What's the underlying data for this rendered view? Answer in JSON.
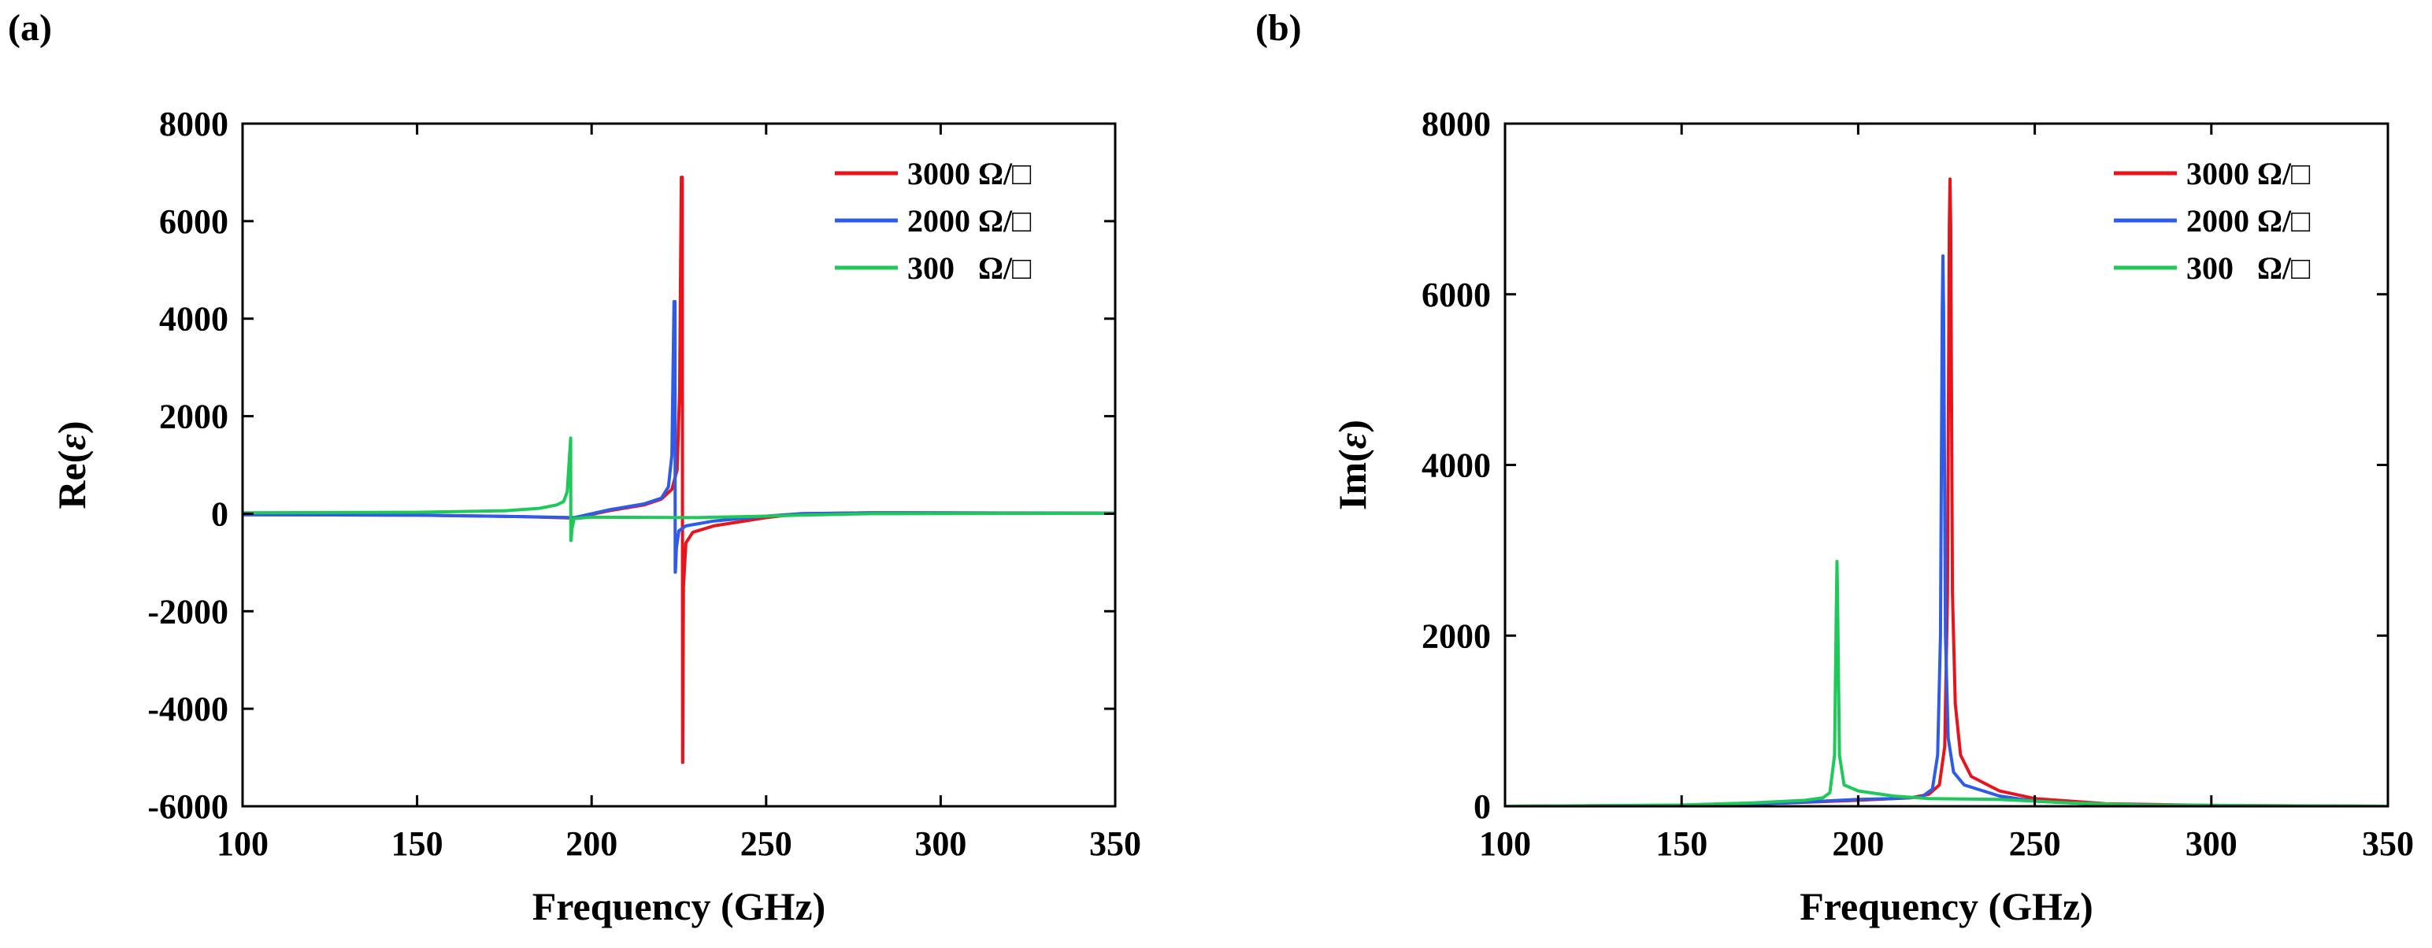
{
  "panels": [
    {
      "label": "(a)"
    },
    {
      "label": "(b)"
    }
  ],
  "chart_data": [
    {
      "type": "line",
      "panel": "(a)",
      "title": "",
      "xlabel": "Frequency (GHz)",
      "ylabel_prefix": "Re(",
      "ylabel_symbol": "ε",
      "ylabel_suffix": ")",
      "xlim": [
        100,
        350
      ],
      "ylim": [
        -6000,
        8000
      ],
      "xticks": [
        "100",
        "150",
        "200",
        "250",
        "300",
        "350"
      ],
      "yticks": [
        "-6000",
        "-4000",
        "-2000",
        "0",
        "2000",
        "4000",
        "6000",
        "8000"
      ],
      "xtick_values": [
        100,
        150,
        200,
        250,
        300,
        350
      ],
      "ytick_values": [
        -6000,
        -4000,
        -2000,
        0,
        2000,
        4000,
        6000,
        8000
      ],
      "legend_position": "top-right",
      "grid": false,
      "series": [
        {
          "name": "3000 Ω/□",
          "color": "#e8141c",
          "x": [
            100,
            150,
            180,
            195,
            205,
            215,
            220,
            223,
            224.5,
            225.2,
            225.7,
            226.0,
            226.05,
            226.1,
            226.3,
            227,
            229,
            235,
            250,
            260,
            280,
            350
          ],
          "y": [
            -20,
            -30,
            -60,
            -90,
            60,
            180,
            300,
            500,
            900,
            2500,
            6900,
            6900,
            -5100,
            -5100,
            -1500,
            -600,
            -380,
            -250,
            -80,
            0,
            20,
            10
          ]
        },
        {
          "name": "2000 Ω/□",
          "color": "#2e5be8",
          "x": [
            100,
            150,
            180,
            195,
            205,
            215,
            220,
            222,
            223,
            223.6,
            223.9,
            223.95,
            224.0,
            224.3,
            225,
            227,
            235,
            250,
            260,
            280,
            350
          ],
          "y": [
            -20,
            -30,
            -60,
            -80,
            80,
            200,
            320,
            550,
            1200,
            4350,
            4350,
            -1200,
            -1200,
            -700,
            -350,
            -250,
            -150,
            -50,
            0,
            20,
            10
          ]
        },
        {
          "name": "300   Ω/□",
          "color": "#1ec95a",
          "x": [
            100,
            150,
            175,
            185,
            190,
            192,
            193,
            193.5,
            194.0,
            194.05,
            194.1,
            194.4,
            195,
            200,
            230,
            250,
            260,
            280,
            350
          ],
          "y": [
            20,
            30,
            60,
            110,
            180,
            250,
            450,
            1000,
            1550,
            -550,
            -550,
            -300,
            -100,
            -70,
            -80,
            -50,
            -30,
            0,
            10
          ]
        }
      ]
    },
    {
      "type": "line",
      "panel": "(b)",
      "title": "",
      "xlabel": "Frequency (GHz)",
      "ylabel_prefix": "Im(",
      "ylabel_symbol": "ε",
      "ylabel_suffix": ")",
      "xlim": [
        100,
        350
      ],
      "ylim": [
        0,
        8000
      ],
      "xticks": [
        "100",
        "150",
        "200",
        "250",
        "300",
        "350"
      ],
      "yticks": [
        "0",
        "2000",
        "4000",
        "6000",
        "8000"
      ],
      "xtick_values": [
        100,
        150,
        200,
        250,
        300,
        350
      ],
      "ytick_values": [
        0,
        2000,
        4000,
        6000,
        8000
      ],
      "legend_position": "top-right",
      "grid": false,
      "series": [
        {
          "name": "3000 Ω/□",
          "color": "#e8141c",
          "x": [
            100,
            150,
            180,
            200,
            215,
            220,
            223,
            224.5,
            225.3,
            225.8,
            226.0,
            226.2,
            226.7,
            227.5,
            229,
            232,
            240,
            250,
            270,
            300,
            350
          ],
          "y": [
            0,
            10,
            40,
            70,
            100,
            140,
            250,
            700,
            2500,
            6800,
            7350,
            6800,
            2500,
            1200,
            600,
            350,
            180,
            90,
            30,
            10,
            0
          ]
        },
        {
          "name": "2000 Ω/□",
          "color": "#2e5be8",
          "x": [
            100,
            150,
            180,
            200,
            210,
            218,
            221,
            222.5,
            223.3,
            223.8,
            224.0,
            224.2,
            224.7,
            225.5,
            227,
            230,
            240,
            250,
            270,
            300,
            350
          ],
          "y": [
            0,
            10,
            40,
            80,
            90,
            110,
            200,
            600,
            2000,
            5800,
            6450,
            5800,
            2000,
            800,
            400,
            250,
            120,
            60,
            20,
            5,
            0
          ]
        },
        {
          "name": "300   Ω/□",
          "color": "#1ec95a",
          "x": [
            100,
            150,
            170,
            185,
            190,
            192,
            193.3,
            193.8,
            194.0,
            194.2,
            194.7,
            196,
            200,
            210,
            220,
            240,
            250,
            260,
            280,
            350
          ],
          "y": [
            0,
            15,
            40,
            70,
            100,
            160,
            600,
            2300,
            2870,
            2300,
            600,
            250,
            180,
            120,
            90,
            80,
            60,
            40,
            15,
            0
          ]
        }
      ]
    }
  ]
}
